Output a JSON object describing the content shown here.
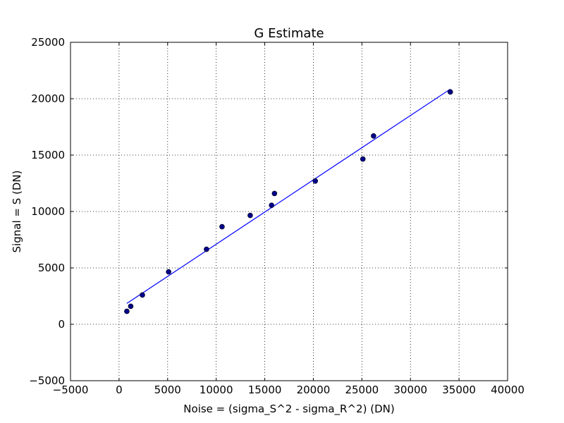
{
  "chart_data": {
    "type": "scatter",
    "title": "G Estimate",
    "xlabel": "Noise = (sigma_S^2 - sigma_R^2) (DN)",
    "ylabel": "Signal = S (DN)",
    "xlim": [
      -5000,
      40000
    ],
    "ylim": [
      -5000,
      25000
    ],
    "xticks": [
      -5000,
      0,
      5000,
      10000,
      15000,
      20000,
      25000,
      30000,
      35000,
      40000
    ],
    "yticks": [
      -5000,
      0,
      5000,
      10000,
      15000,
      20000,
      25000
    ],
    "xtick_labels": [
      "−5000",
      "0",
      "5000",
      "10000",
      "15000",
      "20000",
      "25000",
      "30000",
      "35000",
      "40000"
    ],
    "ytick_labels": [
      "−5000",
      "0",
      "5000",
      "10000",
      "15000",
      "20000",
      "25000"
    ],
    "grid": true,
    "points": [
      {
        "x": 800,
        "y": 1150
      },
      {
        "x": 1200,
        "y": 1600
      },
      {
        "x": 2400,
        "y": 2600
      },
      {
        "x": 5100,
        "y": 4650
      },
      {
        "x": 9000,
        "y": 6650
      },
      {
        "x": 10600,
        "y": 8650
      },
      {
        "x": 13500,
        "y": 9650
      },
      {
        "x": 15700,
        "y": 10550
      },
      {
        "x": 16000,
        "y": 11600
      },
      {
        "x": 20200,
        "y": 12700
      },
      {
        "x": 25100,
        "y": 14650
      },
      {
        "x": 26200,
        "y": 16700
      },
      {
        "x": 34100,
        "y": 20600
      }
    ],
    "fit_line": {
      "x": [
        800,
        34100
      ],
      "y": [
        1850,
        20850
      ]
    },
    "colors": {
      "points": "#00008b",
      "line": "#0000ff",
      "grid": "#000000"
    }
  }
}
